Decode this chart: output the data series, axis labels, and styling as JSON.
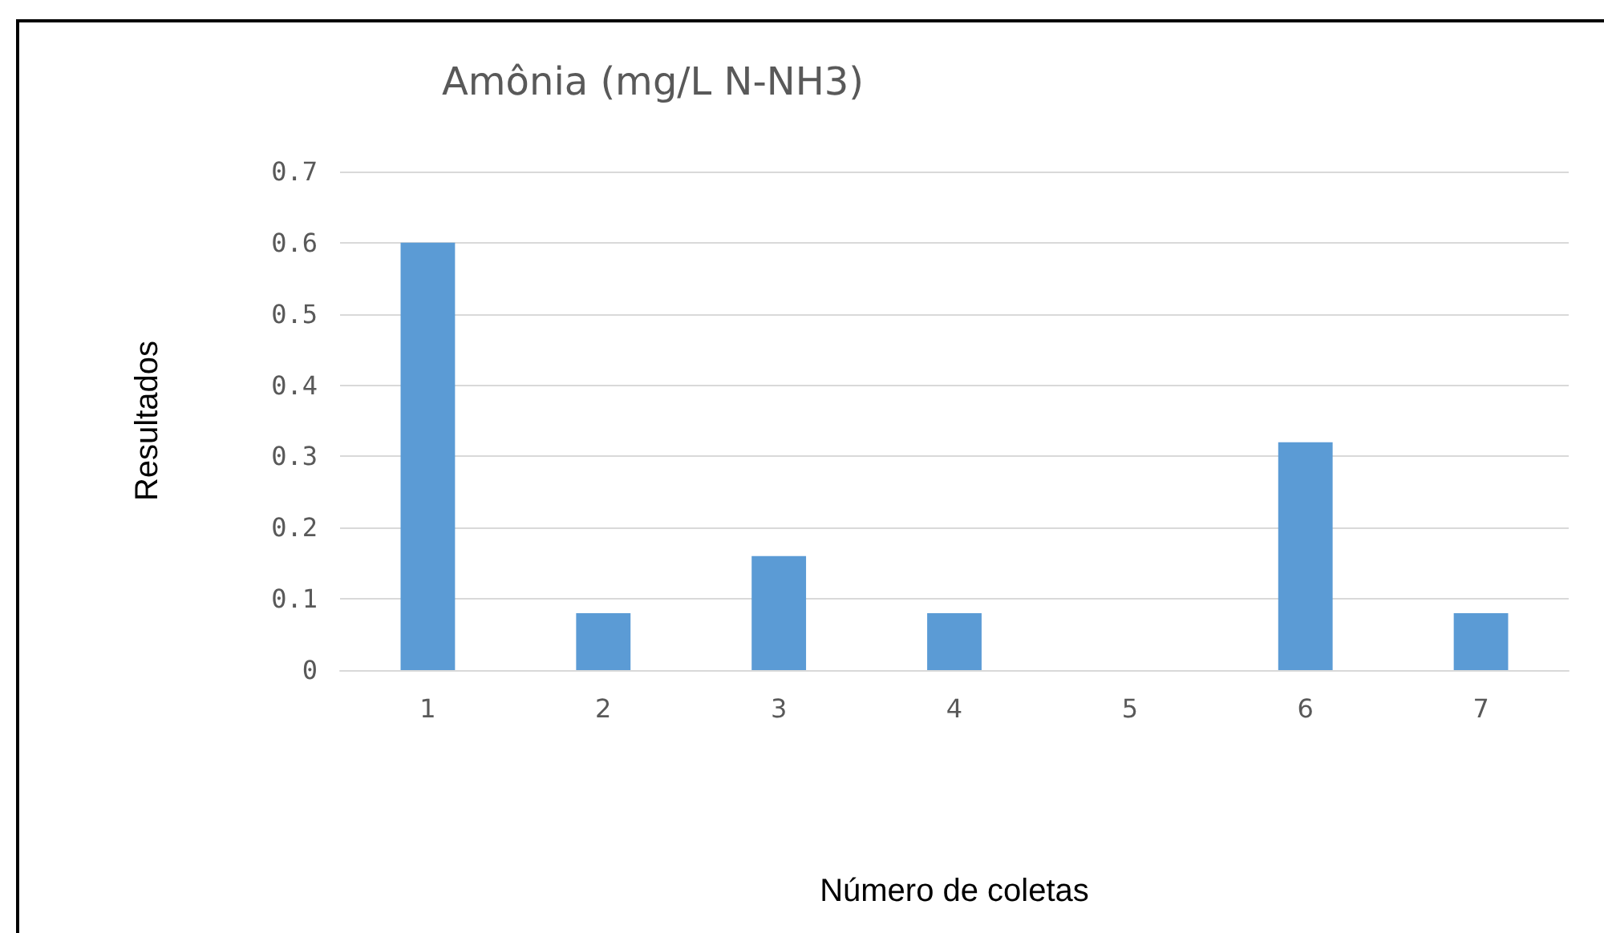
{
  "chart_data": {
    "type": "bar",
    "title": "Amônia (mg/L N-NH3)",
    "xlabel": "Número de coletas",
    "ylabel": "Resultados",
    "categories": [
      "1",
      "2",
      "3",
      "4",
      "5",
      "6",
      "7"
    ],
    "values": [
      0.6,
      0.08,
      0.16,
      0.08,
      0,
      0.32,
      0.08
    ],
    "color": "#5b9bd5",
    "ylim": [
      0,
      0.7
    ],
    "yticks": [
      0,
      0.1,
      0.2,
      0.3,
      0.4,
      0.5,
      0.6,
      0.7
    ],
    "grid": "y"
  }
}
